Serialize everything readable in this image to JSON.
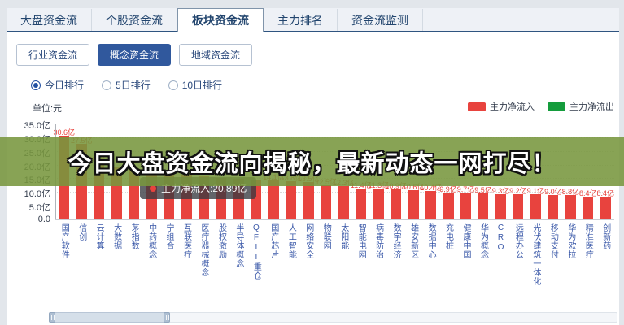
{
  "header": {
    "tabs": [
      {
        "label": "大盘资金流",
        "active": false
      },
      {
        "label": "个股资金流",
        "active": false
      },
      {
        "label": "板块资金流",
        "active": true
      },
      {
        "label": "主力排名",
        "active": false
      },
      {
        "label": "资金流监测",
        "active": false
      }
    ]
  },
  "subnav": {
    "tabs": [
      {
        "label": "行业资金流",
        "active": false
      },
      {
        "label": "概念资金流",
        "active": true
      },
      {
        "label": "地域资金流",
        "active": false
      }
    ]
  },
  "period_filter": {
    "options": [
      {
        "label": "今日排行",
        "selected": true
      },
      {
        "label": "5日排行",
        "selected": false
      },
      {
        "label": "10日排行",
        "selected": false
      }
    ]
  },
  "banner": {
    "text": "今日大盘资金流向揭秘，最新动态一网打尽！"
  },
  "tooltip": {
    "text": "主力净流入:20.89亿",
    "dot_color": "#e8433e"
  },
  "chart_data": {
    "type": "bar",
    "title": "",
    "unit_label": "单位:元",
    "legend": [
      {
        "label": "主力净流入",
        "color": "#e8433e"
      },
      {
        "label": "主力净流出",
        "color": "#149c3c"
      }
    ],
    "legend_position": "top-right",
    "grid": true,
    "ylim": [
      0,
      35
    ],
    "y_ticks": [
      "35.0亿",
      "30.0亿",
      "25.0亿",
      "20.0亿",
      "15.0亿",
      "10.0亿",
      "5.0亿",
      "0.0"
    ],
    "categories": [
      "国产软件",
      "信创",
      "云计算",
      "大数据",
      "茅指数",
      "中药概念",
      "宁组合",
      "互联医疗",
      "医疗器械概念",
      "股权激励",
      "半导体概念",
      "QFII重仓",
      "国产芯片",
      "人工智能",
      "网络安全",
      "物联网",
      "太阳能",
      "智能电网",
      "病毒防治",
      "数字经济",
      "雄安新区",
      "数据中心",
      "充电桩",
      "健康中国",
      "华为概念",
      "CRO",
      "远程办公",
      "光伏建筑一体化",
      "移动支付",
      "华为欧拉",
      "精准医疗",
      "创新药"
    ],
    "values": [
      30.6,
      27.5,
      20.89,
      19.2,
      18.3,
      17.5,
      16.8,
      16.2,
      15.6,
      15.1,
      14.7,
      14.4,
      14.1,
      13.8,
      13.5,
      12.5,
      12.3,
      11.4,
      11.3,
      10.9,
      10.6,
      10.4,
      9.9,
      9.7,
      9.5,
      9.3,
      9.2,
      9.1,
      9.0,
      8.8,
      8.4,
      8.4
    ],
    "value_labels": [
      "30.6亿",
      "27.5亿",
      "20.9亿",
      "",
      "",
      "",
      "",
      "",
      "",
      "",
      "",
      "",
      "14.1亿",
      "13.8亿",
      "13.5亿",
      "12.5亿",
      "12.3亿",
      "11.4亿",
      "11.3亿",
      "10.9亿",
      "10.6亿",
      "10.4亿",
      "9.9亿",
      "9.7亿",
      "9.5亿",
      "9.3亿",
      "9.2亿",
      "9.1亿",
      "9.0亿",
      "8.8亿",
      "8.4亿",
      "8.4亿"
    ],
    "bar_color": "#e8433e"
  }
}
